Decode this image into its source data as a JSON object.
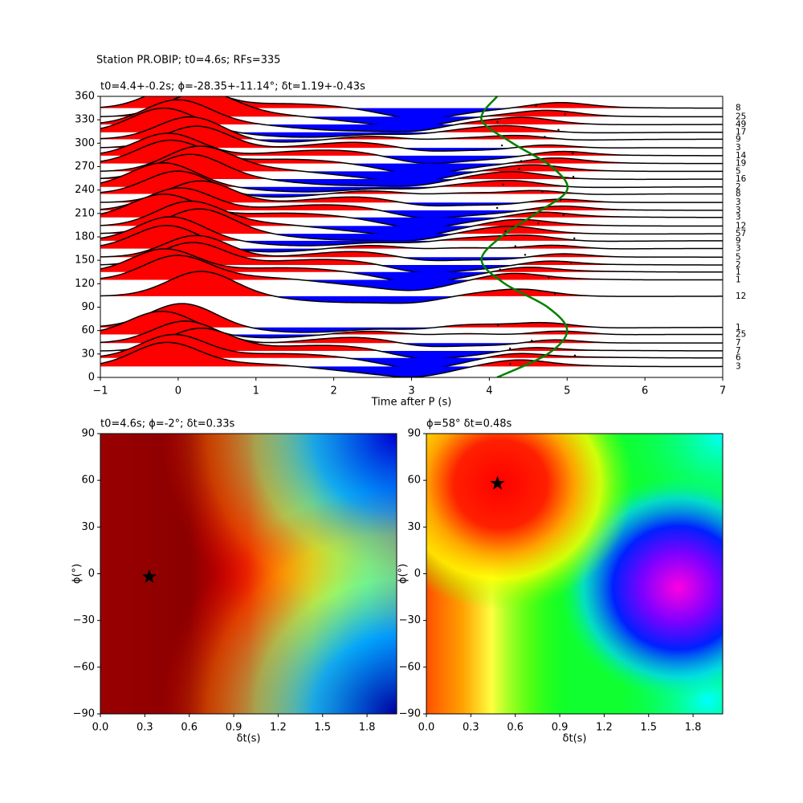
{
  "figure_title": "Station PR.OBIP; t0=4.6s; RFs=335",
  "chart_data": [
    {
      "type": "wiggle",
      "title": "t0=4.4+-0.2s; $\\phi$=-28.35+-11.14°; $\\delta$t=1.19+-0.43s",
      "title_display": "t0=4.4+-0.2s; ϕ=-28.35+-11.14°; δt=1.19+-0.43s",
      "xlabel": "Time after P (s)",
      "xlim": [
        -1,
        7
      ],
      "xticks": [
        {
          "value": -1,
          "label": "−1"
        },
        0,
        1,
        2,
        3,
        4,
        5,
        6,
        7
      ],
      "ylim": [
        0,
        360
      ],
      "yticks": [
        0,
        30,
        60,
        90,
        120,
        150,
        180,
        210,
        240,
        270,
        300,
        330,
        360
      ],
      "positive_color": "#ff0000",
      "negative_color": "#0000ff",
      "traces": [
        {
          "baz": 345,
          "label": "8"
        },
        {
          "baz": 334,
          "label": "25"
        },
        {
          "baz": 324,
          "label": "49"
        },
        {
          "baz": 314,
          "label": "17"
        },
        {
          "baz": 305,
          "label": "9"
        },
        {
          "baz": 294,
          "label": "3"
        },
        {
          "baz": 284,
          "label": "14"
        },
        {
          "baz": 274,
          "label": "19"
        },
        {
          "baz": 264,
          "label": "5"
        },
        {
          "baz": 254,
          "label": "16"
        },
        {
          "baz": 244,
          "label": "2"
        },
        {
          "baz": 235,
          "label": "8"
        },
        {
          "baz": 224,
          "label": "3"
        },
        {
          "baz": 214,
          "label": "3"
        },
        {
          "baz": 205,
          "label": "3"
        },
        {
          "baz": 194,
          "label": "12"
        },
        {
          "baz": 184,
          "label": "57"
        },
        {
          "baz": 175,
          "label": "9"
        },
        {
          "baz": 165,
          "label": "3"
        },
        {
          "baz": 154,
          "label": "5"
        },
        {
          "baz": 144,
          "label": "2"
        },
        {
          "baz": 135,
          "label": "1"
        },
        {
          "baz": 125,
          "label": "1"
        },
        {
          "baz": 104,
          "label": "12"
        },
        {
          "baz": 64,
          "label": "1"
        },
        {
          "baz": 55,
          "label": "25"
        },
        {
          "baz": 44,
          "label": "7"
        },
        {
          "baz": 34,
          "label": "7"
        },
        {
          "baz": 25,
          "label": "6"
        },
        {
          "baz": 14,
          "label": "3"
        }
      ],
      "curve": {
        "color": "#008000",
        "x": [
          4.1,
          4.75,
          5.0,
          4.75,
          4.2,
          3.9,
          4.15,
          4.6,
          5.0,
          4.8,
          4.3,
          3.9,
          4.1
        ],
        "y": [
          0,
          30,
          60,
          90,
          120,
          150,
          180,
          210,
          240,
          270,
          300,
          330,
          360
        ]
      }
    },
    {
      "type": "heatmap",
      "scheme": "jet-wedge",
      "title_display": "t0=4.6s; ϕ=-2°; δt=0.33s",
      "xlabel": "δt(s)",
      "ylabel": "ϕ(°)",
      "xlim": [
        0,
        2
      ],
      "xticks": [
        {
          "value": 0,
          "label": "0.0"
        },
        0.3,
        0.6,
        0.9,
        1.2,
        1.5,
        1.8
      ],
      "ylim": [
        -90,
        90
      ],
      "yticks": [
        {
          "value": -90,
          "label": "−90"
        },
        {
          "value": -60,
          "label": "−60"
        },
        {
          "value": -30,
          "label": "−30"
        },
        0,
        30,
        60,
        90
      ],
      "marker": {
        "x": 0.33,
        "y": -2
      }
    },
    {
      "type": "heatmap",
      "scheme": "hsv-blobs",
      "title_display": "ϕ=58° δt=0.48s",
      "xlabel": "δt(s)",
      "ylabel": "ϕ(°)",
      "xlim": [
        0,
        2
      ],
      "xticks": [
        {
          "value": 0,
          "label": "0.0"
        },
        0.3,
        0.6,
        0.9,
        1.2,
        1.5,
        1.8
      ],
      "ylim": [
        -90,
        90
      ],
      "yticks": [
        {
          "value": -90,
          "label": "−90"
        },
        {
          "value": -60,
          "label": "−60"
        },
        {
          "value": -30,
          "label": "−30"
        },
        0,
        30,
        60,
        90
      ],
      "marker": {
        "x": 0.48,
        "y": 58
      }
    }
  ]
}
